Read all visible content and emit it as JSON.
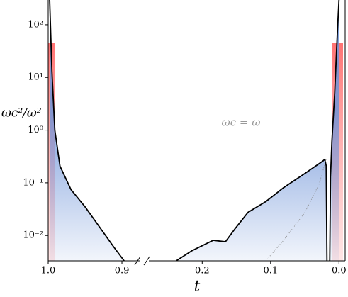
{
  "chart_data": {
    "type": "line",
    "y_label": "ωc²/ω²",
    "x_label": "t",
    "log_y": true,
    "ylim": [
      0.0033,
      295
    ],
    "yticks": [
      {
        "value": 100,
        "label": "10²"
      },
      {
        "value": 10,
        "label": "10¹"
      },
      {
        "value": 1,
        "label": "10⁰"
      },
      {
        "value": 0.1,
        "label": "10⁻¹"
      },
      {
        "value": 0.01,
        "label": "10⁻²"
      }
    ],
    "hline": {
      "value": 1,
      "label": "ωc = ω",
      "color": "#999999"
    },
    "segments": [
      {
        "xlim": [
          1.0,
          0.876
        ],
        "xticks": [
          {
            "value": 1,
            "label": "1.0"
          },
          {
            "value": 0.9,
            "label": "0.9"
          }
        ],
        "series": [
          {
            "color": "#000000",
            "fill": "#6f94d8",
            "x": [
              0.998,
              0.995,
              0.991,
              0.984,
              0.969,
              0.95,
              0.931,
              0.912,
              0.897
            ],
            "values": [
              295,
              13.5,
              1.0,
              0.207,
              0.074,
              0.035,
              0.0149,
              0.0063,
              0.0033
            ]
          }
        ]
      },
      {
        "xlim": [
          0.278,
          -0.009
        ],
        "xticks": [
          0.2,
          0.1,
          {
            "value": 0,
            "label": "0.0"
          }
        ],
        "series": [
          {
            "color": "#000000",
            "fill": "#6f94d8",
            "x": [
              0.238,
              0.2155,
              0.184,
              0.166,
              0.153,
              0.133,
              0.107,
              0.081,
              0.0497,
              0.0238,
              0.0207,
              0.0187,
              0.0176,
              null,
              0.0135,
              0.0124,
              0.0104,
              0.0062,
              0.0021,
              0.0
            ],
            "values": [
              0.0033,
              0.0051,
              0.0081,
              0.0076,
              0.0129,
              0.0275,
              0.044,
              0.081,
              0.151,
              0.257,
              0.28,
              0.21,
              0.0033,
              null,
              0.0033,
              0.13,
              0.61,
              5.3,
              85,
              295
            ]
          },
          {
            "color": "#888888",
            "style": "dotted",
            "x": [
              0.107,
              0.081,
              0.0497,
              0.029,
              0.0187
            ],
            "values": [
              0.0033,
              0.0081,
              0.0275,
              0.095,
              0.28
            ]
          }
        ]
      }
    ]
  }
}
